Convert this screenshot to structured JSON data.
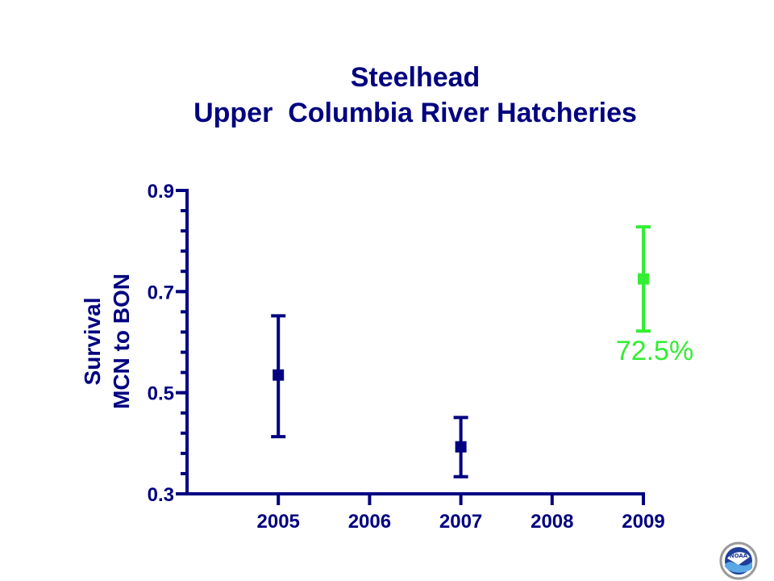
{
  "chart_data": {
    "type": "scatter",
    "title_lines": [
      "Steelhead",
      "Upper  Columbia River Hatcheries"
    ],
    "ylabel_lines": [
      "Survival",
      "MCN to BON"
    ],
    "x_ticks": [
      2005,
      2006,
      2007,
      2008,
      2009
    ],
    "xlim": [
      2004,
      2009
    ],
    "ylim": [
      0.3,
      0.9
    ],
    "y_ticks": [
      0.3,
      0.5,
      0.7,
      0.9
    ],
    "y_tick_labels": [
      "0.3",
      "0.5",
      "0.7",
      "0.9"
    ],
    "y_minor_step": 0.04,
    "points": [
      {
        "x": 2005,
        "y": 0.535,
        "low": 0.413,
        "high": 0.652,
        "color": "#000080"
      },
      {
        "x": 2007,
        "y": 0.393,
        "low": 0.334,
        "high": 0.451,
        "color": "#000080"
      },
      {
        "x": 2009,
        "y": 0.725,
        "low": 0.622,
        "high": 0.828,
        "color": "#33ee33"
      }
    ],
    "annotations": [
      {
        "text": "72.5%",
        "x": 2009,
        "y": 0.565,
        "color": "#33ee33"
      }
    ],
    "axis_color": "#000080",
    "grid": false,
    "legend": "none"
  },
  "logo": {
    "name": "NOAA",
    "text": "NOAA"
  }
}
